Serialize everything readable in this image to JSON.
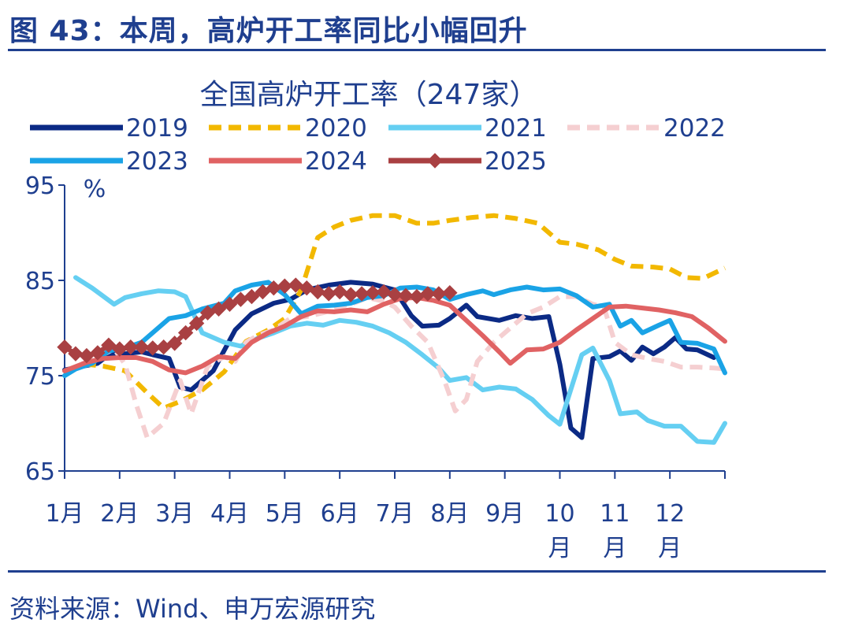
{
  "figure_title": "图 43：本周，高炉开工率同比小幅回升",
  "source": "资料来源：Wind、申万宏源研究",
  "colors": {
    "brand": "#1f3f8f"
  },
  "chart_data": {
    "type": "line",
    "title": "全国高炉开工率（247家）",
    "ylabel": "%",
    "ylim": [
      65,
      95
    ],
    "yticks": [
      "95",
      "85",
      "75",
      "65"
    ],
    "month_labels": [
      "1月",
      "2月",
      "3月",
      "4月",
      "5月",
      "6月",
      "7月",
      "8月",
      "9月",
      "10\n月",
      "11\n月",
      "12\n月"
    ],
    "grid": false,
    "legend": "top",
    "series": [
      {
        "name": "2019",
        "color": "#0b2a85",
        "dash": "solid",
        "marker": "none",
        "points": [
          [
            1,
            75.6
          ],
          [
            1.6,
            76.3
          ],
          [
            1.8,
            77.2
          ],
          [
            2.1,
            77.3
          ],
          [
            2.4,
            77.5
          ],
          [
            2.6,
            77.2
          ],
          [
            2.9,
            76.8
          ],
          [
            3.1,
            73.8
          ],
          [
            3.3,
            73.5
          ],
          [
            3.7,
            75.5
          ],
          [
            4.1,
            79.8
          ],
          [
            4.4,
            81.5
          ],
          [
            4.8,
            82.6
          ],
          [
            5.1,
            83
          ],
          [
            5.4,
            84
          ],
          [
            5.8,
            84.5
          ],
          [
            6.2,
            84.8
          ],
          [
            6.6,
            84.6
          ],
          [
            7.0,
            84
          ],
          [
            7.3,
            81.3
          ],
          [
            7.5,
            80.2
          ],
          [
            7.8,
            80.3
          ],
          [
            8.0,
            81
          ],
          [
            8.3,
            82.4
          ],
          [
            8.5,
            81.2
          ],
          [
            8.9,
            80.8
          ],
          [
            9.2,
            81.3
          ],
          [
            9.5,
            81
          ],
          [
            9.8,
            81.2
          ],
          [
            10.0,
            76.2
          ],
          [
            10.2,
            69.5
          ],
          [
            10.4,
            68.5
          ],
          [
            10.6,
            76.8
          ],
          [
            10.9,
            77
          ],
          [
            11.1,
            77.6
          ],
          [
            11.3,
            76.6
          ],
          [
            11.5,
            78
          ],
          [
            11.7,
            77.3
          ],
          [
            11.9,
            78
          ],
          [
            12.1,
            79
          ],
          [
            12.3,
            77.8
          ],
          [
            12.5,
            77.7
          ],
          [
            12.8,
            76.9
          ]
        ]
      },
      {
        "name": "2020",
        "color": "#f2b800",
        "dash": "dash",
        "marker": "none",
        "points": [
          [
            1,
            75.5
          ],
          [
            1.4,
            76.2
          ],
          [
            1.7,
            76
          ],
          [
            2.1,
            75.5
          ],
          [
            2.5,
            73.2
          ],
          [
            2.8,
            71.6
          ],
          [
            3.1,
            72.3
          ],
          [
            3.5,
            73.5
          ],
          [
            3.9,
            75.4
          ],
          [
            4.3,
            78.6
          ],
          [
            4.7,
            79.8
          ],
          [
            5.0,
            81
          ],
          [
            5.3,
            84
          ],
          [
            5.6,
            89.5
          ],
          [
            5.9,
            90.6
          ],
          [
            6.2,
            91.3
          ],
          [
            6.6,
            91.8
          ],
          [
            7.0,
            91.8
          ],
          [
            7.4,
            91
          ],
          [
            7.7,
            91
          ],
          [
            8.0,
            91.3
          ],
          [
            8.4,
            91.6
          ],
          [
            8.8,
            91.8
          ],
          [
            9.2,
            91.5
          ],
          [
            9.6,
            91
          ],
          [
            10.0,
            89
          ],
          [
            10.3,
            88.8
          ],
          [
            10.7,
            88.2
          ],
          [
            11.0,
            87.2
          ],
          [
            11.3,
            86.5
          ],
          [
            11.7,
            86.4
          ],
          [
            12.0,
            86.2
          ],
          [
            12.3,
            85.3
          ],
          [
            12.6,
            85.2
          ],
          [
            13.0,
            86.3
          ]
        ]
      },
      {
        "name": "2021",
        "color": "#65cff2",
        "dash": "solid",
        "marker": "none",
        "points": [
          [
            1.2,
            85.3
          ],
          [
            1.5,
            84.2
          ],
          [
            1.9,
            82.5
          ],
          [
            2.1,
            83.2
          ],
          [
            2.4,
            83.6
          ],
          [
            2.7,
            83.9
          ],
          [
            3.0,
            83.8
          ],
          [
            3.2,
            83.3
          ],
          [
            3.5,
            79.5
          ],
          [
            3.9,
            78.5
          ],
          [
            4.2,
            78.1
          ],
          [
            4.5,
            78.9
          ],
          [
            4.8,
            79.5
          ],
          [
            5.1,
            80.2
          ],
          [
            5.4,
            80.5
          ],
          [
            5.7,
            80.3
          ],
          [
            6.0,
            80.8
          ],
          [
            6.3,
            80.6
          ],
          [
            6.6,
            80.2
          ],
          [
            6.9,
            79.5
          ],
          [
            7.2,
            78.5
          ],
          [
            7.5,
            77.2
          ],
          [
            7.8,
            75.8
          ],
          [
            8.0,
            74.5
          ],
          [
            8.3,
            74.8
          ],
          [
            8.6,
            73.5
          ],
          [
            8.9,
            73.8
          ],
          [
            9.2,
            73.6
          ],
          [
            9.5,
            72.5
          ],
          [
            9.8,
            70.8
          ],
          [
            10.0,
            69.9
          ],
          [
            10.4,
            77.2
          ],
          [
            10.6,
            77.9
          ],
          [
            10.9,
            74.5
          ],
          [
            11.1,
            71
          ],
          [
            11.4,
            71.2
          ],
          [
            11.6,
            70.3
          ],
          [
            11.9,
            69.7
          ],
          [
            12.2,
            69.7
          ],
          [
            12.5,
            68.1
          ],
          [
            12.8,
            68
          ],
          [
            13.0,
            70
          ]
        ]
      },
      {
        "name": "2022",
        "color": "#f5cfd1",
        "dash": "dash",
        "marker": "none",
        "points": [
          [
            1,
            75.2
          ],
          [
            1.3,
            76.2
          ],
          [
            1.6,
            76.9
          ],
          [
            1.9,
            77.8
          ],
          [
            2.1,
            76.2
          ],
          [
            2.3,
            72
          ],
          [
            2.5,
            68.5
          ],
          [
            2.8,
            70
          ],
          [
            3.1,
            74.5
          ],
          [
            3.3,
            71
          ],
          [
            3.6,
            76
          ],
          [
            3.9,
            77
          ],
          [
            4.1,
            76.5
          ],
          [
            4.3,
            78.5
          ],
          [
            4.5,
            79.2
          ],
          [
            4.8,
            79.8
          ],
          [
            5.1,
            81
          ],
          [
            5.4,
            81.2
          ],
          [
            5.7,
            81.6
          ],
          [
            6.0,
            82.2
          ],
          [
            6.3,
            82.7
          ],
          [
            6.5,
            83.2
          ],
          [
            6.8,
            82.8
          ],
          [
            7.0,
            82.2
          ],
          [
            7.3,
            80.2
          ],
          [
            7.6,
            78.5
          ],
          [
            7.9,
            74.5
          ],
          [
            8.1,
            71.3
          ],
          [
            8.3,
            72.5
          ],
          [
            8.5,
            76.5
          ],
          [
            8.8,
            78.5
          ],
          [
            9.1,
            80
          ],
          [
            9.4,
            81.5
          ],
          [
            9.7,
            82.2
          ],
          [
            10.0,
            83.3
          ],
          [
            10.3,
            83.3
          ],
          [
            10.6,
            82.5
          ],
          [
            10.8,
            82.2
          ],
          [
            11.0,
            78.5
          ],
          [
            11.3,
            77.2
          ],
          [
            11.6,
            76.8
          ],
          [
            11.9,
            76.5
          ],
          [
            12.2,
            75.9
          ],
          [
            12.5,
            75.9
          ],
          [
            12.8,
            75.8
          ],
          [
            13.0,
            75.7
          ]
        ]
      },
      {
        "name": "2023",
        "color": "#1aa3e6",
        "dash": "solid",
        "marker": "none",
        "points": [
          [
            1,
            75
          ],
          [
            1.2,
            75.7
          ],
          [
            1.5,
            76.3
          ],
          [
            1.8,
            77.6
          ],
          [
            2.1,
            77.9
          ],
          [
            2.4,
            78.5
          ],
          [
            2.7,
            80
          ],
          [
            2.9,
            81
          ],
          [
            3.2,
            81.3
          ],
          [
            3.5,
            82
          ],
          [
            3.7,
            82.3
          ],
          [
            3.9,
            82.6
          ],
          [
            4.1,
            83.9
          ],
          [
            4.4,
            84.5
          ],
          [
            4.7,
            84.8
          ],
          [
            5.0,
            83.5
          ],
          [
            5.3,
            81.5
          ],
          [
            5.6,
            82.3
          ],
          [
            5.9,
            82.4
          ],
          [
            6.2,
            82.6
          ],
          [
            6.5,
            83.2
          ],
          [
            6.8,
            83.4
          ],
          [
            7.1,
            84.2
          ],
          [
            7.4,
            84.3
          ],
          [
            7.7,
            84
          ],
          [
            8.0,
            83
          ],
          [
            8.3,
            83.5
          ],
          [
            8.6,
            83.9
          ],
          [
            8.8,
            83.5
          ],
          [
            9.1,
            84
          ],
          [
            9.4,
            84.3
          ],
          [
            9.7,
            84
          ],
          [
            10.0,
            84.1
          ],
          [
            10.3,
            83.4
          ],
          [
            10.6,
            82.2
          ],
          [
            10.9,
            82.5
          ],
          [
            11.1,
            80.2
          ],
          [
            11.3,
            80.8
          ],
          [
            11.5,
            79.5
          ],
          [
            11.8,
            80.3
          ],
          [
            12.0,
            80.8
          ],
          [
            12.2,
            78.5
          ],
          [
            12.5,
            78.4
          ],
          [
            12.8,
            77.8
          ],
          [
            13.0,
            75.3
          ]
        ]
      },
      {
        "name": "2024",
        "color": "#e06263",
        "dash": "solid",
        "marker": "none",
        "points": [
          [
            1,
            75.5
          ],
          [
            1.4,
            76.4
          ],
          [
            1.7,
            76.8
          ],
          [
            2.0,
            76.9
          ],
          [
            2.3,
            76.9
          ],
          [
            2.6,
            76.5
          ],
          [
            2.9,
            75.6
          ],
          [
            3.2,
            75.3
          ],
          [
            3.5,
            76
          ],
          [
            3.8,
            77
          ],
          [
            4.1,
            76.8
          ],
          [
            4.4,
            78.5
          ],
          [
            4.7,
            79.5
          ],
          [
            5.0,
            80.2
          ],
          [
            5.3,
            81.2
          ],
          [
            5.6,
            81.8
          ],
          [
            5.9,
            81.7
          ],
          [
            6.2,
            81.9
          ],
          [
            6.5,
            81.7
          ],
          [
            6.8,
            82.5
          ],
          [
            7.1,
            83.1
          ],
          [
            7.4,
            83.2
          ],
          [
            7.7,
            82.9
          ],
          [
            8.0,
            82.4
          ],
          [
            8.3,
            80.8
          ],
          [
            8.6,
            79.2
          ],
          [
            8.9,
            77.5
          ],
          [
            9.1,
            76.3
          ],
          [
            9.4,
            77.7
          ],
          [
            9.7,
            77.8
          ],
          [
            10.0,
            78.5
          ],
          [
            10.3,
            79.8
          ],
          [
            10.6,
            81
          ],
          [
            10.9,
            82.2
          ],
          [
            11.2,
            82.3
          ],
          [
            11.5,
            82.1
          ],
          [
            11.8,
            81.9
          ],
          [
            12.1,
            81.6
          ],
          [
            12.4,
            81.2
          ],
          [
            12.7,
            80
          ],
          [
            13.0,
            78.6
          ]
        ]
      },
      {
        "name": "2025",
        "color": "#a94042",
        "dash": "solid",
        "marker": "diamond",
        "points": [
          [
            1.0,
            78
          ],
          [
            1.2,
            77.3
          ],
          [
            1.4,
            77.1
          ],
          [
            1.6,
            77.4
          ],
          [
            1.8,
            78.2
          ],
          [
            2.0,
            77.8
          ],
          [
            2.2,
            78
          ],
          [
            2.4,
            78
          ],
          [
            2.6,
            77.9
          ],
          [
            2.8,
            78
          ],
          [
            3.0,
            78.4
          ],
          [
            3.2,
            79.5
          ],
          [
            3.4,
            80.5
          ],
          [
            3.6,
            81.6
          ],
          [
            3.8,
            82
          ],
          [
            4.0,
            82.5
          ],
          [
            4.2,
            83
          ],
          [
            4.4,
            83.3
          ],
          [
            4.6,
            83.8
          ],
          [
            4.8,
            84.2
          ],
          [
            5.0,
            84.4
          ],
          [
            5.2,
            84.5
          ],
          [
            5.4,
            84.2
          ],
          [
            5.6,
            83.8
          ],
          [
            5.8,
            83.6
          ],
          [
            6.0,
            83.8
          ],
          [
            6.2,
            83.5
          ],
          [
            6.4,
            83.6
          ],
          [
            6.6,
            83.7
          ],
          [
            6.8,
            83.8
          ],
          [
            7.0,
            83.5
          ],
          [
            7.2,
            83.4
          ],
          [
            7.4,
            83.3
          ],
          [
            7.6,
            83.6
          ],
          [
            7.8,
            83.6
          ],
          [
            8.0,
            83.7
          ]
        ]
      }
    ]
  }
}
